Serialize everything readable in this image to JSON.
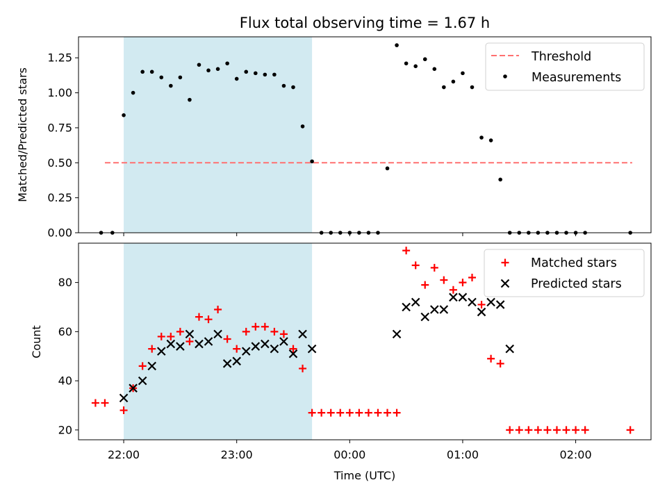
{
  "colors": {
    "shade": "#add8e6",
    "threshold": "#ff7070",
    "measurement": "#000000",
    "matched": "#ff0000",
    "predicted": "#000000"
  },
  "chart_data": [
    {
      "type": "scatter",
      "title": "Flux total observing time = 1.67 h",
      "xlabel": "",
      "ylabel": "Matched/Predicted stars",
      "xlim": [
        "21:36",
        "02:40"
      ],
      "ylim": [
        0,
        1.4
      ],
      "yticks": [
        "0.00",
        "0.25",
        "0.50",
        "0.75",
        "1.00",
        "1.25"
      ],
      "shaded_span": {
        "x0": "22:00",
        "x1": "23:40"
      },
      "legend": {
        "position": "top-right",
        "entries": [
          "Threshold",
          "Measurements"
        ]
      },
      "threshold": {
        "name": "Threshold",
        "y": 0.5,
        "x0": "21:50",
        "x1": "02:30"
      },
      "series": [
        {
          "name": "Measurements",
          "x": [
            "21:48",
            "21:54",
            "22:00",
            "22:05",
            "22:10",
            "22:15",
            "22:20",
            "22:25",
            "22:30",
            "22:35",
            "22:40",
            "22:45",
            "22:50",
            "22:55",
            "23:00",
            "23:05",
            "23:10",
            "23:15",
            "23:20",
            "23:25",
            "23:30",
            "23:35",
            "23:40",
            "23:45",
            "23:50",
            "23:55",
            "00:00",
            "00:05",
            "00:10",
            "00:15",
            "00:20",
            "00:25",
            "00:30",
            "00:35",
            "00:40",
            "00:45",
            "00:50",
            "00:55",
            "01:00",
            "01:05",
            "01:10",
            "01:15",
            "01:20",
            "01:25",
            "01:30",
            "01:35",
            "01:40",
            "01:45",
            "01:50",
            "01:55",
            "02:00",
            "02:05",
            "02:29"
          ],
          "y": [
            0.0,
            0.0,
            0.84,
            1.0,
            1.15,
            1.15,
            1.11,
            1.05,
            1.11,
            0.95,
            1.2,
            1.16,
            1.17,
            1.21,
            1.1,
            1.15,
            1.14,
            1.13,
            1.13,
            1.05,
            1.04,
            0.76,
            0.51,
            0.0,
            0.0,
            0.0,
            0.0,
            0.0,
            0.0,
            0.0,
            0.46,
            1.34,
            1.21,
            1.19,
            1.24,
            1.17,
            1.04,
            1.08,
            1.14,
            1.04,
            0.68,
            0.66,
            0.38,
            0.0,
            0.0,
            0.0,
            0.0,
            0.0,
            0.0,
            0.0,
            0.0,
            0.0,
            0.0
          ]
        }
      ]
    },
    {
      "type": "scatter",
      "title": "",
      "xlabel": "Time (UTC)",
      "ylabel": "Count",
      "xlim": [
        "21:36",
        "02:40"
      ],
      "ylim": [
        16,
        96
      ],
      "yticks": [
        "20",
        "40",
        "60",
        "80"
      ],
      "xticks": [
        "22:00",
        "23:00",
        "00:00",
        "01:00",
        "02:00"
      ],
      "shaded_span": {
        "x0": "22:00",
        "x1": "23:40"
      },
      "legend": {
        "position": "top-right",
        "entries": [
          "Matched stars",
          "Predicted stars"
        ]
      },
      "series": [
        {
          "name": "Matched stars",
          "marker": "+",
          "x": [
            "21:45",
            "21:50",
            "22:00",
            "22:05",
            "22:10",
            "22:15",
            "22:20",
            "22:25",
            "22:30",
            "22:35",
            "22:40",
            "22:45",
            "22:50",
            "22:55",
            "23:00",
            "23:05",
            "23:10",
            "23:15",
            "23:20",
            "23:25",
            "23:30",
            "23:35",
            "23:40",
            "23:45",
            "23:50",
            "23:55",
            "00:00",
            "00:05",
            "00:10",
            "00:15",
            "00:20",
            "00:25",
            "00:30",
            "00:35",
            "00:40",
            "00:45",
            "00:50",
            "00:55",
            "01:00",
            "01:05",
            "01:10",
            "01:15",
            "01:20",
            "01:25",
            "01:30",
            "01:35",
            "01:40",
            "01:45",
            "01:50",
            "01:55",
            "02:00",
            "02:05",
            "02:29"
          ],
          "y": [
            31,
            31,
            28,
            37,
            46,
            53,
            58,
            58,
            60,
            56,
            66,
            65,
            69,
            57,
            53,
            60,
            62,
            62,
            60,
            59,
            53,
            45,
            27,
            27,
            27,
            27,
            27,
            27,
            27,
            27,
            27,
            27,
            93,
            87,
            79,
            86,
            81,
            77,
            80,
            82,
            71,
            49,
            47,
            20,
            20,
            20,
            20,
            20,
            20,
            20,
            20,
            20,
            20
          ]
        },
        {
          "name": "Predicted stars",
          "marker": "x",
          "x": [
            "22:00",
            "22:05",
            "22:10",
            "22:15",
            "22:20",
            "22:25",
            "22:30",
            "22:35",
            "22:40",
            "22:45",
            "22:50",
            "22:55",
            "23:00",
            "23:05",
            "23:10",
            "23:15",
            "23:20",
            "23:25",
            "23:30",
            "23:35",
            "23:40",
            "00:25",
            "00:30",
            "00:35",
            "00:40",
            "00:45",
            "00:50",
            "00:55",
            "01:00",
            "01:05",
            "01:10",
            "01:15",
            "01:20",
            "01:25"
          ],
          "y": [
            33,
            37,
            40,
            46,
            52,
            55,
            54,
            59,
            55,
            56,
            59,
            47,
            48,
            52,
            54,
            55,
            53,
            56,
            51,
            59,
            53,
            59,
            70,
            72,
            66,
            69,
            69,
            74,
            74,
            72,
            68,
            72,
            71,
            53
          ]
        }
      ]
    }
  ]
}
